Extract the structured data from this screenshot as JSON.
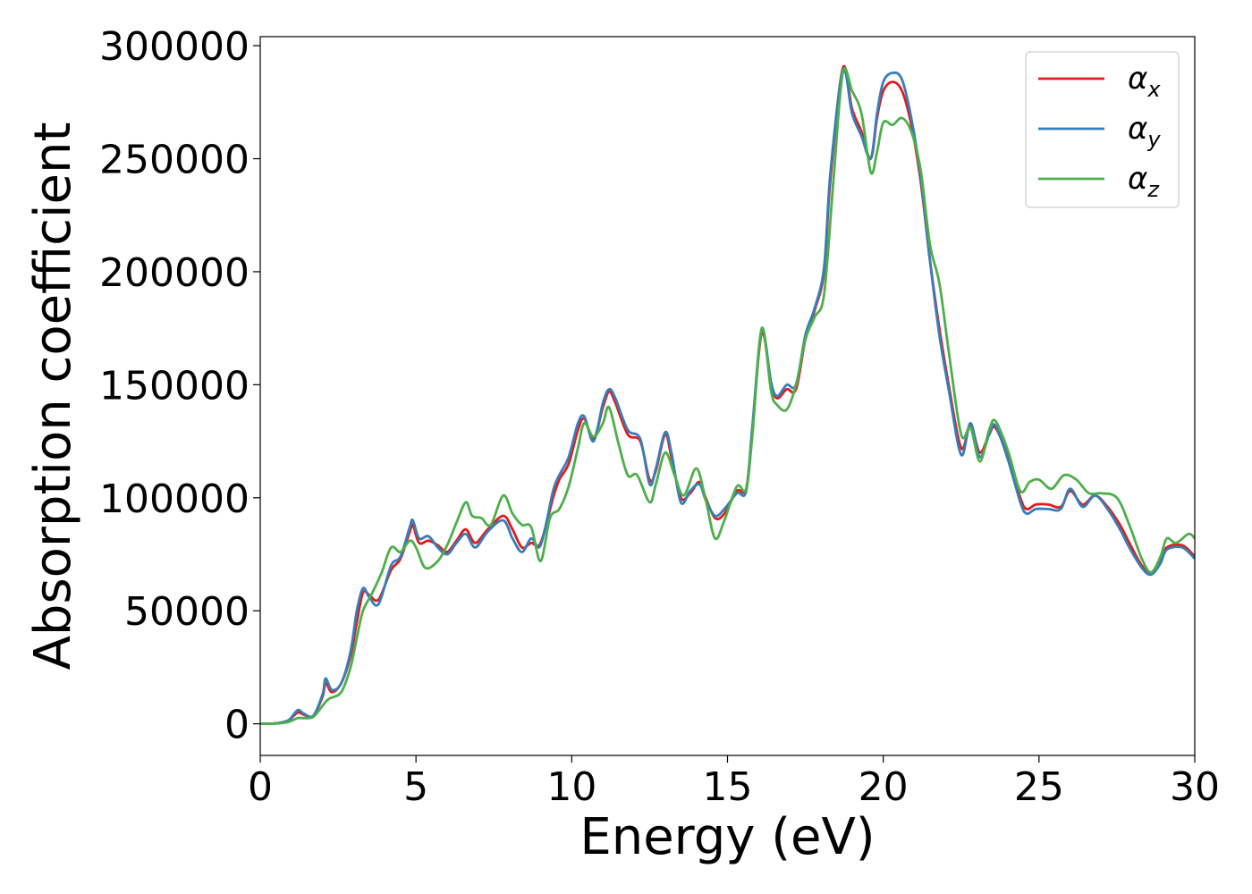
{
  "chart_data": {
    "type": "line",
    "xlabel": "Energy (eV)",
    "ylabel": "Absorption coefficient",
    "xlim": [
      0,
      30
    ],
    "ylim": [
      -14000,
      304000
    ],
    "x_ticks": [
      "0",
      "5",
      "10",
      "15",
      "20",
      "25",
      "30"
    ],
    "y_ticks": [
      "0",
      "50000",
      "100000",
      "150000",
      "200000",
      "250000",
      "300000"
    ],
    "legend_position": "top-right",
    "grid": false,
    "series": [
      {
        "name": "α",
        "subscript": "x",
        "color": "#e41a1c",
        "points": [
          [
            0,
            0
          ],
          [
            0.5,
            200
          ],
          [
            0.9,
            1500
          ],
          [
            1.2,
            5000
          ],
          [
            1.4,
            4000
          ],
          [
            1.7,
            3500
          ],
          [
            2.0,
            12000
          ],
          [
            2.1,
            18000
          ],
          [
            2.3,
            14000
          ],
          [
            2.6,
            18000
          ],
          [
            2.9,
            30000
          ],
          [
            3.1,
            45000
          ],
          [
            3.3,
            58000
          ],
          [
            3.5,
            57000
          ],
          [
            3.8,
            55000
          ],
          [
            4.2,
            68000
          ],
          [
            4.5,
            73000
          ],
          [
            4.8,
            85000
          ],
          [
            4.9,
            88000
          ],
          [
            5.1,
            80000
          ],
          [
            5.4,
            81000
          ],
          [
            5.7,
            79000
          ],
          [
            6.0,
            76000
          ],
          [
            6.3,
            81000
          ],
          [
            6.6,
            86000
          ],
          [
            6.9,
            80000
          ],
          [
            7.3,
            86000
          ],
          [
            7.8,
            92000
          ],
          [
            8.1,
            86000
          ],
          [
            8.4,
            78000
          ],
          [
            8.7,
            80000
          ],
          [
            9.0,
            80000
          ],
          [
            9.4,
            100000
          ],
          [
            9.6,
            108000
          ],
          [
            9.9,
            115000
          ],
          [
            10.2,
            130000
          ],
          [
            10.4,
            135000
          ],
          [
            10.7,
            126000
          ],
          [
            11.0,
            140000
          ],
          [
            11.2,
            147000
          ],
          [
            11.4,
            142000
          ],
          [
            11.8,
            128000
          ],
          [
            12.2,
            125000
          ],
          [
            12.5,
            108000
          ],
          [
            12.7,
            112000
          ],
          [
            13.0,
            128000
          ],
          [
            13.2,
            118000
          ],
          [
            13.5,
            100000
          ],
          [
            13.8,
            102000
          ],
          [
            14.1,
            107000
          ],
          [
            14.3,
            100000
          ],
          [
            14.6,
            91000
          ],
          [
            14.9,
            93000
          ],
          [
            15.3,
            103000
          ],
          [
            15.6,
            104000
          ],
          [
            15.8,
            130000
          ],
          [
            16.1,
            173000
          ],
          [
            16.4,
            150000
          ],
          [
            16.6,
            144000
          ],
          [
            16.9,
            148000
          ],
          [
            17.2,
            148000
          ],
          [
            17.5,
            170000
          ],
          [
            17.8,
            183000
          ],
          [
            18.1,
            200000
          ],
          [
            18.3,
            240000
          ],
          [
            18.7,
            290000
          ],
          [
            19.0,
            272000
          ],
          [
            19.3,
            262000
          ],
          [
            19.6,
            250000
          ],
          [
            19.8,
            268000
          ],
          [
            20.0,
            280000
          ],
          [
            20.3,
            284000
          ],
          [
            20.6,
            280000
          ],
          [
            20.9,
            265000
          ],
          [
            21.2,
            240000
          ],
          [
            21.5,
            205000
          ],
          [
            21.8,
            175000
          ],
          [
            22.1,
            150000
          ],
          [
            22.5,
            122000
          ],
          [
            22.8,
            132000
          ],
          [
            23.1,
            120000
          ],
          [
            23.4,
            128000
          ],
          [
            23.6,
            131000
          ],
          [
            24.0,
            118000
          ],
          [
            24.4,
            100000
          ],
          [
            24.6,
            95000
          ],
          [
            24.9,
            97000
          ],
          [
            25.3,
            97000
          ],
          [
            25.7,
            96000
          ],
          [
            26.0,
            103000
          ],
          [
            26.4,
            97000
          ],
          [
            26.8,
            101000
          ],
          [
            27.2,
            96000
          ],
          [
            27.6,
            88000
          ],
          [
            27.9,
            80000
          ],
          [
            28.3,
            70000
          ],
          [
            28.6,
            67000
          ],
          [
            28.9,
            72000
          ],
          [
            29.1,
            78000
          ],
          [
            29.6,
            79000
          ],
          [
            30.0,
            74000
          ]
        ]
      },
      {
        "name": "α",
        "subscript": "y",
        "color": "#377eb8",
        "points": [
          [
            0,
            0
          ],
          [
            0.5,
            200
          ],
          [
            0.9,
            1500
          ],
          [
            1.2,
            6000
          ],
          [
            1.4,
            4500
          ],
          [
            1.7,
            3500
          ],
          [
            2.0,
            13000
          ],
          [
            2.1,
            20000
          ],
          [
            2.3,
            15000
          ],
          [
            2.6,
            18000
          ],
          [
            2.9,
            32000
          ],
          [
            3.1,
            50000
          ],
          [
            3.3,
            60000
          ],
          [
            3.5,
            56000
          ],
          [
            3.8,
            53000
          ],
          [
            4.2,
            70000
          ],
          [
            4.5,
            74000
          ],
          [
            4.8,
            87000
          ],
          [
            4.9,
            90000
          ],
          [
            5.1,
            82000
          ],
          [
            5.4,
            83000
          ],
          [
            5.7,
            78000
          ],
          [
            6.0,
            75000
          ],
          [
            6.3,
            80000
          ],
          [
            6.6,
            84000
          ],
          [
            6.9,
            78000
          ],
          [
            7.3,
            85000
          ],
          [
            7.8,
            90000
          ],
          [
            8.1,
            82000
          ],
          [
            8.4,
            76000
          ],
          [
            8.7,
            82000
          ],
          [
            9.0,
            79000
          ],
          [
            9.4,
            103000
          ],
          [
            9.6,
            110000
          ],
          [
            9.9,
            118000
          ],
          [
            10.2,
            133000
          ],
          [
            10.4,
            136000
          ],
          [
            10.7,
            125000
          ],
          [
            11.0,
            142000
          ],
          [
            11.2,
            148000
          ],
          [
            11.4,
            144000
          ],
          [
            11.8,
            130000
          ],
          [
            12.2,
            126000
          ],
          [
            12.5,
            106000
          ],
          [
            12.7,
            113000
          ],
          [
            13.0,
            129000
          ],
          [
            13.2,
            120000
          ],
          [
            13.5,
            98000
          ],
          [
            13.8,
            103000
          ],
          [
            14.1,
            106000
          ],
          [
            14.3,
            99000
          ],
          [
            14.6,
            92000
          ],
          [
            14.9,
            95000
          ],
          [
            15.3,
            102000
          ],
          [
            15.6,
            103000
          ],
          [
            15.8,
            132000
          ],
          [
            16.1,
            174000
          ],
          [
            16.4,
            151000
          ],
          [
            16.6,
            145000
          ],
          [
            16.9,
            150000
          ],
          [
            17.2,
            150000
          ],
          [
            17.5,
            172000
          ],
          [
            17.8,
            184000
          ],
          [
            18.1,
            202000
          ],
          [
            18.3,
            243000
          ],
          [
            18.7,
            289000
          ],
          [
            19.0,
            270000
          ],
          [
            19.3,
            260000
          ],
          [
            19.6,
            250000
          ],
          [
            19.8,
            270000
          ],
          [
            20.0,
            284000
          ],
          [
            20.3,
            288000
          ],
          [
            20.6,
            285000
          ],
          [
            20.9,
            268000
          ],
          [
            21.2,
            242000
          ],
          [
            21.5,
            205000
          ],
          [
            21.8,
            172000
          ],
          [
            22.1,
            148000
          ],
          [
            22.5,
            119000
          ],
          [
            22.8,
            133000
          ],
          [
            23.1,
            118000
          ],
          [
            23.4,
            128000
          ],
          [
            23.6,
            132000
          ],
          [
            24.0,
            117000
          ],
          [
            24.4,
            98000
          ],
          [
            24.6,
            93000
          ],
          [
            24.9,
            95000
          ],
          [
            25.3,
            95000
          ],
          [
            25.7,
            95000
          ],
          [
            26.0,
            104000
          ],
          [
            26.4,
            96000
          ],
          [
            26.8,
            101000
          ],
          [
            27.2,
            95000
          ],
          [
            27.6,
            86000
          ],
          [
            27.9,
            78000
          ],
          [
            28.3,
            69000
          ],
          [
            28.6,
            66000
          ],
          [
            28.9,
            71000
          ],
          [
            29.1,
            77000
          ],
          [
            29.6,
            78000
          ],
          [
            30.0,
            73000
          ]
        ]
      },
      {
        "name": "α",
        "subscript": "z",
        "color": "#4daf4a",
        "points": [
          [
            0,
            0
          ],
          [
            0.5,
            100
          ],
          [
            0.9,
            800
          ],
          [
            1.2,
            2500
          ],
          [
            1.4,
            2500
          ],
          [
            1.7,
            3000
          ],
          [
            2.0,
            8000
          ],
          [
            2.2,
            11000
          ],
          [
            2.6,
            14000
          ],
          [
            2.9,
            25000
          ],
          [
            3.1,
            38000
          ],
          [
            3.3,
            50000
          ],
          [
            3.6,
            58000
          ],
          [
            3.9,
            67000
          ],
          [
            4.2,
            78000
          ],
          [
            4.5,
            76000
          ],
          [
            4.8,
            81000
          ],
          [
            5.0,
            78000
          ],
          [
            5.3,
            69000
          ],
          [
            5.7,
            72000
          ],
          [
            6.0,
            79000
          ],
          [
            6.3,
            89000
          ],
          [
            6.6,
            98000
          ],
          [
            6.8,
            92000
          ],
          [
            7.1,
            91000
          ],
          [
            7.4,
            88000
          ],
          [
            7.8,
            101000
          ],
          [
            8.1,
            93000
          ],
          [
            8.4,
            88000
          ],
          [
            8.7,
            87000
          ],
          [
            9.0,
            72000
          ],
          [
            9.3,
            91000
          ],
          [
            9.6,
            95000
          ],
          [
            9.9,
            105000
          ],
          [
            10.2,
            122000
          ],
          [
            10.4,
            133000
          ],
          [
            10.7,
            127000
          ],
          [
            11.0,
            133000
          ],
          [
            11.2,
            140000
          ],
          [
            11.5,
            124000
          ],
          [
            11.8,
            110000
          ],
          [
            12.1,
            110000
          ],
          [
            12.5,
            98000
          ],
          [
            12.7,
            106000
          ],
          [
            13.0,
            120000
          ],
          [
            13.3,
            110000
          ],
          [
            13.6,
            101000
          ],
          [
            14.0,
            113000
          ],
          [
            14.3,
            99000
          ],
          [
            14.6,
            82000
          ],
          [
            14.9,
            90000
          ],
          [
            15.3,
            105000
          ],
          [
            15.6,
            104000
          ],
          [
            15.8,
            128000
          ],
          [
            16.1,
            175000
          ],
          [
            16.4,
            147000
          ],
          [
            16.6,
            141000
          ],
          [
            16.9,
            139000
          ],
          [
            17.2,
            150000
          ],
          [
            17.5,
            170000
          ],
          [
            17.8,
            180000
          ],
          [
            18.1,
            190000
          ],
          [
            18.4,
            240000
          ],
          [
            18.7,
            288000
          ],
          [
            19.0,
            280000
          ],
          [
            19.3,
            270000
          ],
          [
            19.6,
            244000
          ],
          [
            19.8,
            253000
          ],
          [
            20.0,
            266000
          ],
          [
            20.3,
            265000
          ],
          [
            20.6,
            268000
          ],
          [
            20.9,
            262000
          ],
          [
            21.2,
            245000
          ],
          [
            21.5,
            212000
          ],
          [
            21.8,
            195000
          ],
          [
            22.1,
            165000
          ],
          [
            22.5,
            128000
          ],
          [
            22.8,
            131000
          ],
          [
            23.1,
            116000
          ],
          [
            23.4,
            130000
          ],
          [
            23.6,
            134000
          ],
          [
            24.0,
            121000
          ],
          [
            24.4,
            103000
          ],
          [
            24.7,
            107000
          ],
          [
            25.0,
            108000
          ],
          [
            25.4,
            104000
          ],
          [
            25.8,
            110000
          ],
          [
            26.2,
            108000
          ],
          [
            26.6,
            102000
          ],
          [
            27.0,
            102000
          ],
          [
            27.5,
            100000
          ],
          [
            27.9,
            88000
          ],
          [
            28.3,
            73000
          ],
          [
            28.6,
            67000
          ],
          [
            28.9,
            74000
          ],
          [
            29.1,
            82000
          ],
          [
            29.4,
            80000
          ],
          [
            29.8,
            84000
          ],
          [
            30.0,
            82000
          ]
        ]
      }
    ]
  }
}
